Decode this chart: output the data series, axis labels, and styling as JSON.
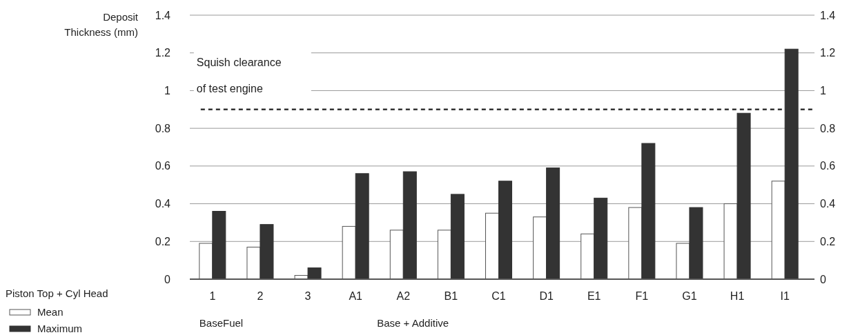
{
  "chart_data": {
    "type": "bar",
    "ylabel": "Deposit Thickness (mm)",
    "categories": [
      "1",
      "2",
      "3",
      "A1",
      "A2",
      "B1",
      "C1",
      "D1",
      "E1",
      "F1",
      "G1",
      "H1",
      "I1"
    ],
    "series": [
      {
        "name": "Mean",
        "color": "#ffffff",
        "values": [
          0.19,
          0.17,
          0.02,
          0.28,
          0.26,
          0.26,
          0.35,
          0.33,
          0.24,
          0.38,
          0.19,
          0.4,
          0.52
        ]
      },
      {
        "name": "Maximum",
        "color": "#333333",
        "values": [
          0.36,
          0.29,
          0.06,
          0.56,
          0.57,
          0.45,
          0.52,
          0.59,
          0.43,
          0.72,
          0.38,
          0.88,
          1.22
        ]
      }
    ],
    "ylim": [
      0,
      1.4
    ],
    "yticks": [
      0,
      0.2,
      0.4,
      0.6,
      0.8,
      1,
      1.2,
      1.4
    ],
    "y2lim": [
      0,
      1.4
    ],
    "y2ticks": [
      0,
      0.2,
      0.4,
      0.6,
      0.8,
      1,
      1.2,
      1.4
    ],
    "grid": "y",
    "legend": "bottom left",
    "legend_title": "Piston Top + Cyl Head",
    "ref_lines": [
      {
        "axis": "y",
        "value": 0.9,
        "label": "Squish clearance\nof test engine",
        "line_style": "dashed",
        "color": "#333333"
      }
    ],
    "annotations": [
      "BaseFuel",
      "Base + Additive"
    ]
  }
}
